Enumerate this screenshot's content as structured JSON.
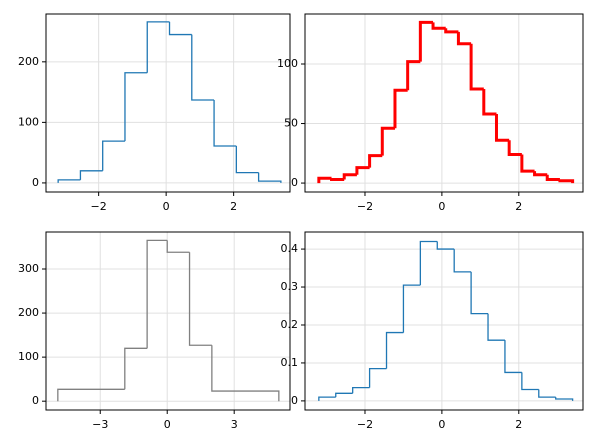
{
  "chart_data": [
    {
      "type": "histogram",
      "color": "#1f77b4",
      "line_width": 1.3,
      "grid": true,
      "bins": [
        -3.2,
        -2.54,
        -1.88,
        -1.22,
        -0.56,
        0.1,
        0.76,
        1.42,
        2.08,
        2.74,
        3.4
      ],
      "values": [
        5,
        20,
        69,
        182,
        266,
        245,
        137,
        61,
        17,
        3
      ],
      "xlim": [
        -3.56,
        3.67
      ],
      "ylim": [
        -15,
        279
      ],
      "xticks": [
        {
          "value": -2,
          "label": "−2"
        },
        0,
        2
      ],
      "yticks": [
        0,
        100,
        200
      ]
    },
    {
      "type": "histogram",
      "color": "#ff0000",
      "line_width": 3,
      "grid": true,
      "bins": [
        -3.2,
        -2.87,
        -2.54,
        -2.21,
        -1.88,
        -1.55,
        -1.22,
        -0.89,
        -0.56,
        -0.23,
        0.1,
        0.43,
        0.76,
        1.09,
        1.42,
        1.75,
        2.08,
        2.41,
        2.74,
        3.07,
        3.4
      ],
      "values": [
        4,
        3,
        7,
        13,
        23,
        46,
        78,
        102,
        135,
        130,
        127,
        117,
        79,
        58,
        36,
        24,
        10,
        7,
        3,
        2
      ],
      "xlim": [
        -3.56,
        3.67
      ],
      "ylim": [
        -7.5,
        142
      ],
      "xticks": [
        {
          "value": -2,
          "label": "−2"
        },
        0,
        2
      ],
      "yticks": [
        0,
        50,
        100
      ]
    },
    {
      "type": "histogram",
      "color": "#808080",
      "line_width": 1.3,
      "grid": true,
      "bins": [
        -4.9,
        -1.9,
        -0.9,
        0.0,
        1.0,
        2.0,
        5.0
      ],
      "values": [
        27,
        120,
        365,
        338,
        127,
        23
      ],
      "xlim": [
        -5.43,
        5.5
      ],
      "ylim": [
        -20,
        384
      ],
      "xticks": [
        {
          "value": -3,
          "label": "−3"
        },
        0,
        3
      ],
      "yticks": [
        0,
        100,
        200,
        300
      ]
    },
    {
      "type": "histogram",
      "color": "#1f77b4",
      "line_width": 1.3,
      "grid": true,
      "bins": [
        -3.2,
        -2.76,
        -2.32,
        -1.88,
        -1.44,
        -1.0,
        -0.56,
        -0.12,
        0.32,
        0.76,
        1.2,
        1.64,
        2.08,
        2.52,
        2.96,
        3.4
      ],
      "values": [
        0.01,
        0.02,
        0.035,
        0.085,
        0.18,
        0.305,
        0.42,
        0.4,
        0.34,
        0.23,
        0.16,
        0.075,
        0.03,
        0.01,
        0.005
      ],
      "xlim": [
        -3.56,
        3.67
      ],
      "ylim": [
        -0.024,
        0.445
      ],
      "xticks": [
        {
          "value": -2,
          "label": "−2"
        },
        0,
        2
      ],
      "yticks": [
        0.0,
        0.1,
        0.2,
        0.3,
        0.4
      ]
    }
  ]
}
